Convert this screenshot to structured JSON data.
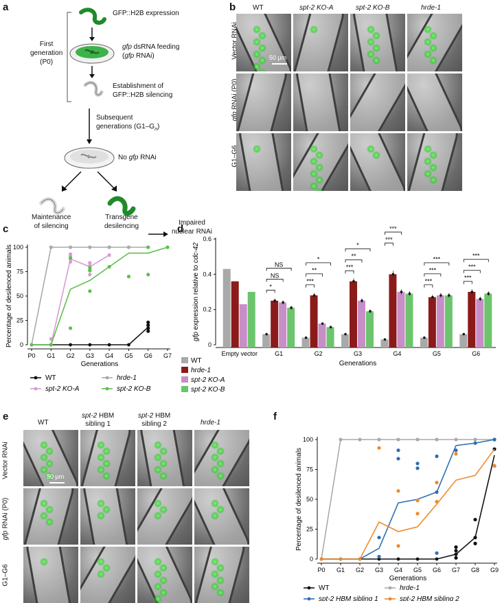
{
  "panel_letters": {
    "a": "a",
    "b": "b",
    "c": "c",
    "d": "d",
    "e": "e",
    "f": "f"
  },
  "panel_a": {
    "first_generation": "First generation (P0)",
    "first_gen_line1": "First",
    "first_gen_line2": "generation",
    "first_gen_line3": "(P0)",
    "step1": "GFP::H2B expression",
    "step2_gene": "gfp",
    "step2_rest": " dsRNA feeding",
    "step2_line2_pre": "(",
    "step2_line2_gene": "gfp",
    "step2_line2_post": " RNAi)",
    "step3_line1": "Establishment of",
    "step3_line2": "GFP::H2B silencing",
    "step4_line1": "Subsequent",
    "step4_line2": "generations (G1–G",
    "step4_sub": "n",
    "step4_close": ")",
    "step5_pre": "No ",
    "step5_gene": "gfp",
    "step5_post": " RNAi",
    "outcome_left_line1": "Maintenance",
    "outcome_left_line2": "of silencing",
    "outcome_mid_line1": "Transgene",
    "outcome_mid_line2": "desilencing",
    "outcome_right_line1": "Impaired",
    "outcome_right_line2": "nuclear RNAi"
  },
  "panel_b": {
    "columns": [
      "WT",
      "spt-2 KO-A",
      "spt-2 KO-B",
      "hrde-1"
    ],
    "rows": [
      "Vector RNAi",
      "gfp RNAi (P0)",
      "G1–G6"
    ],
    "scale_bar": "50 μm"
  },
  "panel_e": {
    "columns": [
      "WT",
      "spt-2 HBM sibling 1",
      "spt-2 HBM sibling 2",
      "hrde-1"
    ],
    "col2_line1": "spt-2 HBM",
    "col2_line2": "sibling 1",
    "col3_line1": "spt-2 HBM",
    "col3_line2": "sibling 2",
    "rows": [
      "Vector RNAi",
      "gfp RNAi (P0)",
      "G1–G6"
    ],
    "scale_bar": "50 μm"
  },
  "chart_data": [
    {
      "id": "c",
      "type": "line",
      "xlabel": "Generations",
      "ylabel": "Percentage of desilenced animals",
      "categories": [
        "P0",
        "G1",
        "G2",
        "G3",
        "G4",
        "G5",
        "G6",
        "G7"
      ],
      "ylim": [
        0,
        100
      ],
      "yticks": [
        0,
        25,
        50,
        75,
        100
      ],
      "series": [
        {
          "name": "WT",
          "color": "#111111",
          "mean": [
            0,
            0,
            0,
            0,
            0,
            0,
            18,
            null
          ],
          "points": [
            [
              6,
              14
            ],
            [
              6,
              17
            ],
            [
              6,
              20
            ],
            [
              6,
              23
            ]
          ]
        },
        {
          "name": "hrde-1",
          "color": "#aaaaaa",
          "mean": [
            0,
            100,
            100,
            100,
            100,
            100,
            100,
            null
          ],
          "points": [
            [
              1,
              100
            ],
            [
              2,
              100
            ],
            [
              3,
              100
            ],
            [
              4,
              100
            ],
            [
              5,
              100
            ],
            [
              6,
              100
            ]
          ]
        },
        {
          "name": "spt-2 KO-A",
          "color": "#d89bd4",
          "mean": [
            0,
            0,
            88,
            80,
            92,
            null,
            null,
            null
          ],
          "points": [
            [
              1,
              6
            ],
            [
              2,
              85
            ],
            [
              2,
              88
            ],
            [
              2,
              91
            ],
            [
              2,
              93
            ],
            [
              3,
              72
            ],
            [
              3,
              77
            ],
            [
              3,
              81
            ],
            [
              3,
              84
            ],
            [
              4,
              92
            ]
          ]
        },
        {
          "name": "spt-2 KO-B",
          "color": "#5cc04a",
          "mean": [
            0,
            0,
            57,
            66,
            80,
            94,
            94,
            100
          ],
          "points": [
            [
              1,
              0
            ],
            [
              2,
              17
            ],
            [
              2,
              89
            ],
            [
              3,
              55
            ],
            [
              3,
              76
            ],
            [
              3,
              79
            ],
            [
              4,
              80
            ],
            [
              5,
              70
            ],
            [
              6,
              72
            ],
            [
              6,
              100
            ],
            [
              7,
              100
            ]
          ]
        }
      ],
      "legend": [
        "WT",
        "hrde-1",
        "spt-2 KO-A",
        "spt-2 KO-B"
      ]
    },
    {
      "id": "d",
      "type": "bar",
      "ylabel": "gfp expression relative to cdc-42",
      "ylabel_gene1": "gfp",
      "ylabel_mid": " expression relative to ",
      "ylabel_gene2": "cdc-42",
      "xlabel": "Generations",
      "categories": [
        "Empty vector",
        "G1",
        "G2",
        "G3",
        "G4",
        "G5",
        "G6"
      ],
      "ylim": [
        0,
        0.6
      ],
      "yticks": [
        "0",
        "0.2",
        "0.4",
        "0.6"
      ],
      "series": [
        {
          "name": "WT",
          "color": "#a9a9a9",
          "values": [
            0.43,
            0.06,
            0.04,
            0.06,
            0.03,
            0.04,
            0.06
          ]
        },
        {
          "name": "hrde-1",
          "color": "#8b1a1a",
          "values": [
            0.36,
            0.25,
            0.28,
            0.36,
            0.4,
            0.27,
            0.3
          ]
        },
        {
          "name": "spt-2 KO-A",
          "color": "#c88ec8",
          "values": [
            0.23,
            0.24,
            0.12,
            0.25,
            0.3,
            0.28,
            0.26
          ]
        },
        {
          "name": "spt-2 KO-B",
          "color": "#6cc46c",
          "values": [
            0.3,
            0.21,
            0.1,
            0.19,
            0.29,
            0.28,
            0.29
          ]
        }
      ],
      "significance": [
        {
          "group": "G1",
          "labels": [
            "*",
            "NS",
            "NS"
          ]
        },
        {
          "group": "G2",
          "labels": [
            "***",
            "**",
            "*"
          ]
        },
        {
          "group": "G3",
          "labels": [
            "***",
            "**",
            "*"
          ]
        },
        {
          "group": "G4",
          "labels": [
            "***",
            "***",
            "***"
          ]
        },
        {
          "group": "G5",
          "labels": [
            "***",
            "***",
            "***"
          ]
        },
        {
          "group": "G6",
          "labels": [
            "***",
            "***",
            "***"
          ]
        }
      ],
      "legend": [
        "WT",
        "hrde-1",
        "spt-2 KO-A",
        "spt-2 KO-B"
      ]
    },
    {
      "id": "f",
      "type": "line",
      "xlabel": "Generations",
      "ylabel": "Percentage of desilenced animals",
      "categories": [
        "P0",
        "G1",
        "G2",
        "G3",
        "G4",
        "G5",
        "G6",
        "G7",
        "G8",
        "G9"
      ],
      "ylim": [
        0,
        100
      ],
      "yticks": [
        0,
        25,
        50,
        75,
        100
      ],
      "series": [
        {
          "name": "WT",
          "color": "#111111",
          "mean": [
            0,
            0,
            0,
            0,
            0,
            0,
            0,
            4,
            18,
            87
          ],
          "points": [
            [
              7,
              1
            ],
            [
              7,
              4
            ],
            [
              7,
              7
            ],
            [
              7,
              10
            ],
            [
              8,
              13
            ],
            [
              8,
              18
            ],
            [
              8,
              33
            ],
            [
              9,
              78
            ],
            [
              9,
              92
            ],
            [
              9,
              100
            ]
          ]
        },
        {
          "name": "hrde-1",
          "color": "#aaaaaa",
          "mean": [
            0,
            100,
            100,
            100,
            100,
            100,
            100,
            100,
            100,
            100
          ],
          "points": [
            [
              1,
              100
            ],
            [
              2,
              100
            ],
            [
              3,
              100
            ],
            [
              4,
              100
            ],
            [
              5,
              100
            ],
            [
              6,
              100
            ],
            [
              7,
              100
            ],
            [
              8,
              100
            ],
            [
              9,
              100
            ]
          ]
        },
        {
          "name": "spt-2 HBM sibling 1",
          "color": "#2f6fb5",
          "mean": [
            0,
            0,
            0,
            9,
            47,
            50,
            56,
            95,
            97,
            100
          ],
          "points": [
            [
              3,
              2
            ],
            [
              3,
              18
            ],
            [
              4,
              91
            ],
            [
              4,
              84
            ],
            [
              5,
              80
            ],
            [
              5,
              76
            ],
            [
              6,
              86
            ],
            [
              6,
              56
            ],
            [
              6,
              5
            ],
            [
              7,
              91
            ],
            [
              8,
              97
            ],
            [
              9,
              100
            ]
          ]
        },
        {
          "name": "spt-2 HBM sibling 2",
          "color": "#ee8a2a",
          "mean": [
            0,
            0,
            0,
            31,
            23,
            27,
            46,
            66,
            70,
            92
          ],
          "points": [
            [
              3,
              93
            ],
            [
              4,
              57
            ],
            [
              4,
              11
            ],
            [
              5,
              49
            ],
            [
              5,
              38
            ],
            [
              6,
              64
            ],
            [
              6,
              48
            ],
            [
              7,
              88
            ],
            [
              9,
              78
            ]
          ]
        }
      ],
      "legend": [
        "WT",
        "hrde-1",
        "spt-2 HBM sibling 1",
        "spt-2 HBM sibling 2"
      ]
    }
  ]
}
